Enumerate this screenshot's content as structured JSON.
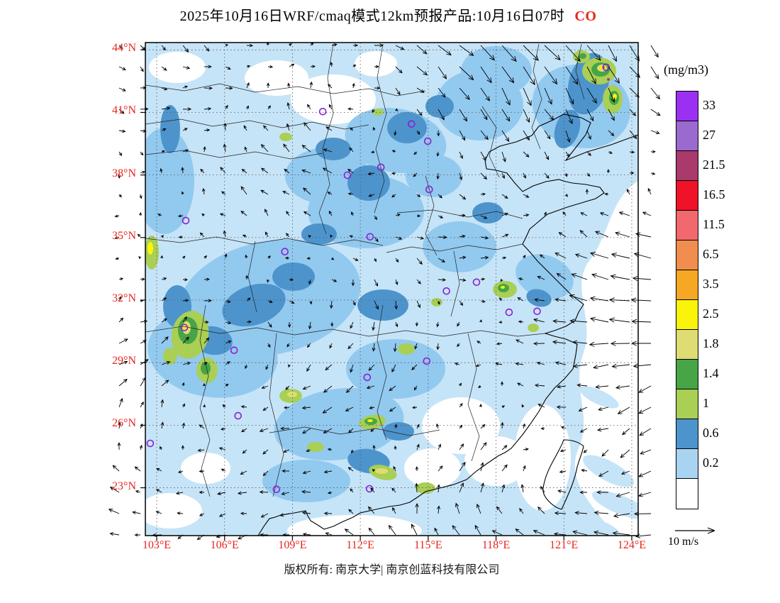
{
  "title": {
    "text": "2025年10月16日WRF/cmaq模式12km预报产品:10月16日07时",
    "species": "CO"
  },
  "axes": {
    "lat_labels": [
      "44°N",
      "41°N",
      "38°N",
      "35°N",
      "32°N",
      "29°N",
      "26°N",
      "23°N"
    ],
    "lon_labels": [
      "103°E",
      "106°E",
      "109°E",
      "112°E",
      "115°E",
      "118°E",
      "121°E",
      "124°E"
    ]
  },
  "legend": {
    "unit": "(mg/m3)",
    "levels": [
      "33",
      "27",
      "21.5",
      "16.5",
      "11.5",
      "6.5",
      "3.5",
      "2.5",
      "1.8",
      "1.4",
      "1",
      "0.6",
      "0.2"
    ],
    "band_colors": [
      "#9B30F2",
      "#9A6ACF",
      "#A93A6B",
      "#EF1229",
      "#F1696C",
      "#F08D4F",
      "#F6A723",
      "#FAF40B",
      "#DEDC72",
      "#47A447",
      "#A9CF55",
      "#4E94CC",
      "#A9D4F1",
      "#FFFFFF"
    ]
  },
  "wind_scale": {
    "label": "10 m/s"
  },
  "footer": {
    "text": "版权所有: 南京大学| 南京创蓝科技有限公司"
  },
  "colors": {
    "axis_labels": "#e8251e",
    "species": "#e8251e",
    "station_marker": "#8B1FD3"
  },
  "stations": [
    [
      0.36,
      0.14
    ],
    [
      0.54,
      0.165
    ],
    [
      0.573,
      0.2
    ],
    [
      0.41,
      0.269
    ],
    [
      0.478,
      0.253
    ],
    [
      0.576,
      0.298
    ],
    [
      0.082,
      0.361
    ],
    [
      0.456,
      0.394
    ],
    [
      0.283,
      0.424
    ],
    [
      0.672,
      0.486
    ],
    [
      0.611,
      0.504
    ],
    [
      0.738,
      0.547
    ],
    [
      0.079,
      0.578
    ],
    [
      0.18,
      0.624
    ],
    [
      0.571,
      0.646
    ],
    [
      0.45,
      0.679
    ],
    [
      0.188,
      0.757
    ],
    [
      0.01,
      0.813
    ],
    [
      0.266,
      0.906
    ],
    [
      0.455,
      0.905
    ],
    [
      0.935,
      0.05
    ],
    [
      0.795,
      0.545
    ]
  ]
}
